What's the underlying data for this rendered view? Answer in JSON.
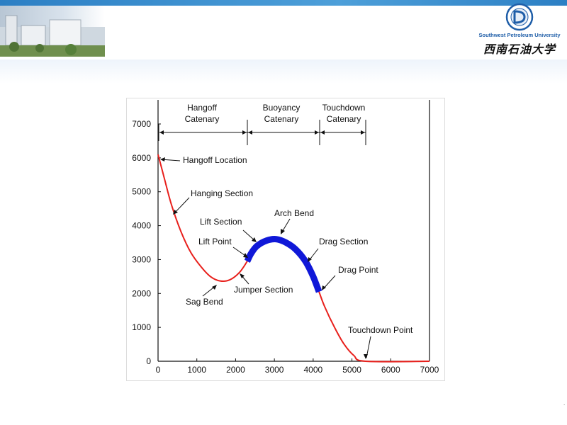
{
  "header": {
    "university_en": "Southwest Petroleum University",
    "university_cn": "西南石油大学",
    "colors": {
      "strip": "#2c7fc4",
      "curve": "#e8201c",
      "thick": "#1018d8"
    }
  },
  "diagram": {
    "zones": [
      {
        "name": "Hangoff",
        "sub": "Catenary"
      },
      {
        "name": "Buoyancy",
        "sub": "Catenary"
      },
      {
        "name": "Touchdown",
        "sub": "Catenary"
      }
    ],
    "labels": {
      "hangoff_location": "Hangoff Location",
      "hanging_section": "Hanging Section",
      "arch_bend": "Arch Bend",
      "lift_section": "Lift Section",
      "lift_point": "Lift Point",
      "drag_section": "Drag Section",
      "drag_point": "Drag Point",
      "jumper_section": "Jumper Section",
      "sag_bend": "Sag Bend",
      "touchdown_point": "Touchdown Point"
    }
  },
  "chart_data": {
    "type": "line",
    "x_ticks": [
      "0",
      "1000",
      "2000",
      "3000",
      "4000",
      "5000",
      "6000",
      "7000"
    ],
    "y_ticks": [
      "0",
      "1000",
      "2000",
      "3000",
      "4000",
      "5000",
      "6000",
      "7000"
    ],
    "xlim": [
      0,
      7000
    ],
    "ylim": [
      0,
      7000
    ],
    "riser_profile": [
      [
        0,
        6100
      ],
      [
        150,
        5450
      ],
      [
        350,
        4600
      ],
      [
        600,
        3800
      ],
      [
        850,
        3200
      ],
      [
        1100,
        2800
      ],
      [
        1350,
        2500
      ],
      [
        1600,
        2370
      ],
      [
        1850,
        2400
      ],
      [
        2100,
        2620
      ],
      [
        2300,
        2950
      ],
      [
        2400,
        3180
      ],
      [
        2550,
        3400
      ],
      [
        2800,
        3560
      ],
      [
        3050,
        3600
      ],
      [
        3300,
        3500
      ],
      [
        3550,
        3300
      ],
      [
        3800,
        2950
      ],
      [
        4000,
        2500
      ],
      [
        4150,
        2050
      ],
      [
        4300,
        1600
      ],
      [
        4550,
        1000
      ],
      [
        4800,
        500
      ],
      [
        5050,
        170
      ],
      [
        5350,
        0
      ],
      [
        7000,
        0
      ]
    ],
    "buoyancy_x_range": [
      2300,
      4150
    ],
    "zone_boundaries_x": [
      0,
      2300,
      4150,
      5350
    ]
  }
}
